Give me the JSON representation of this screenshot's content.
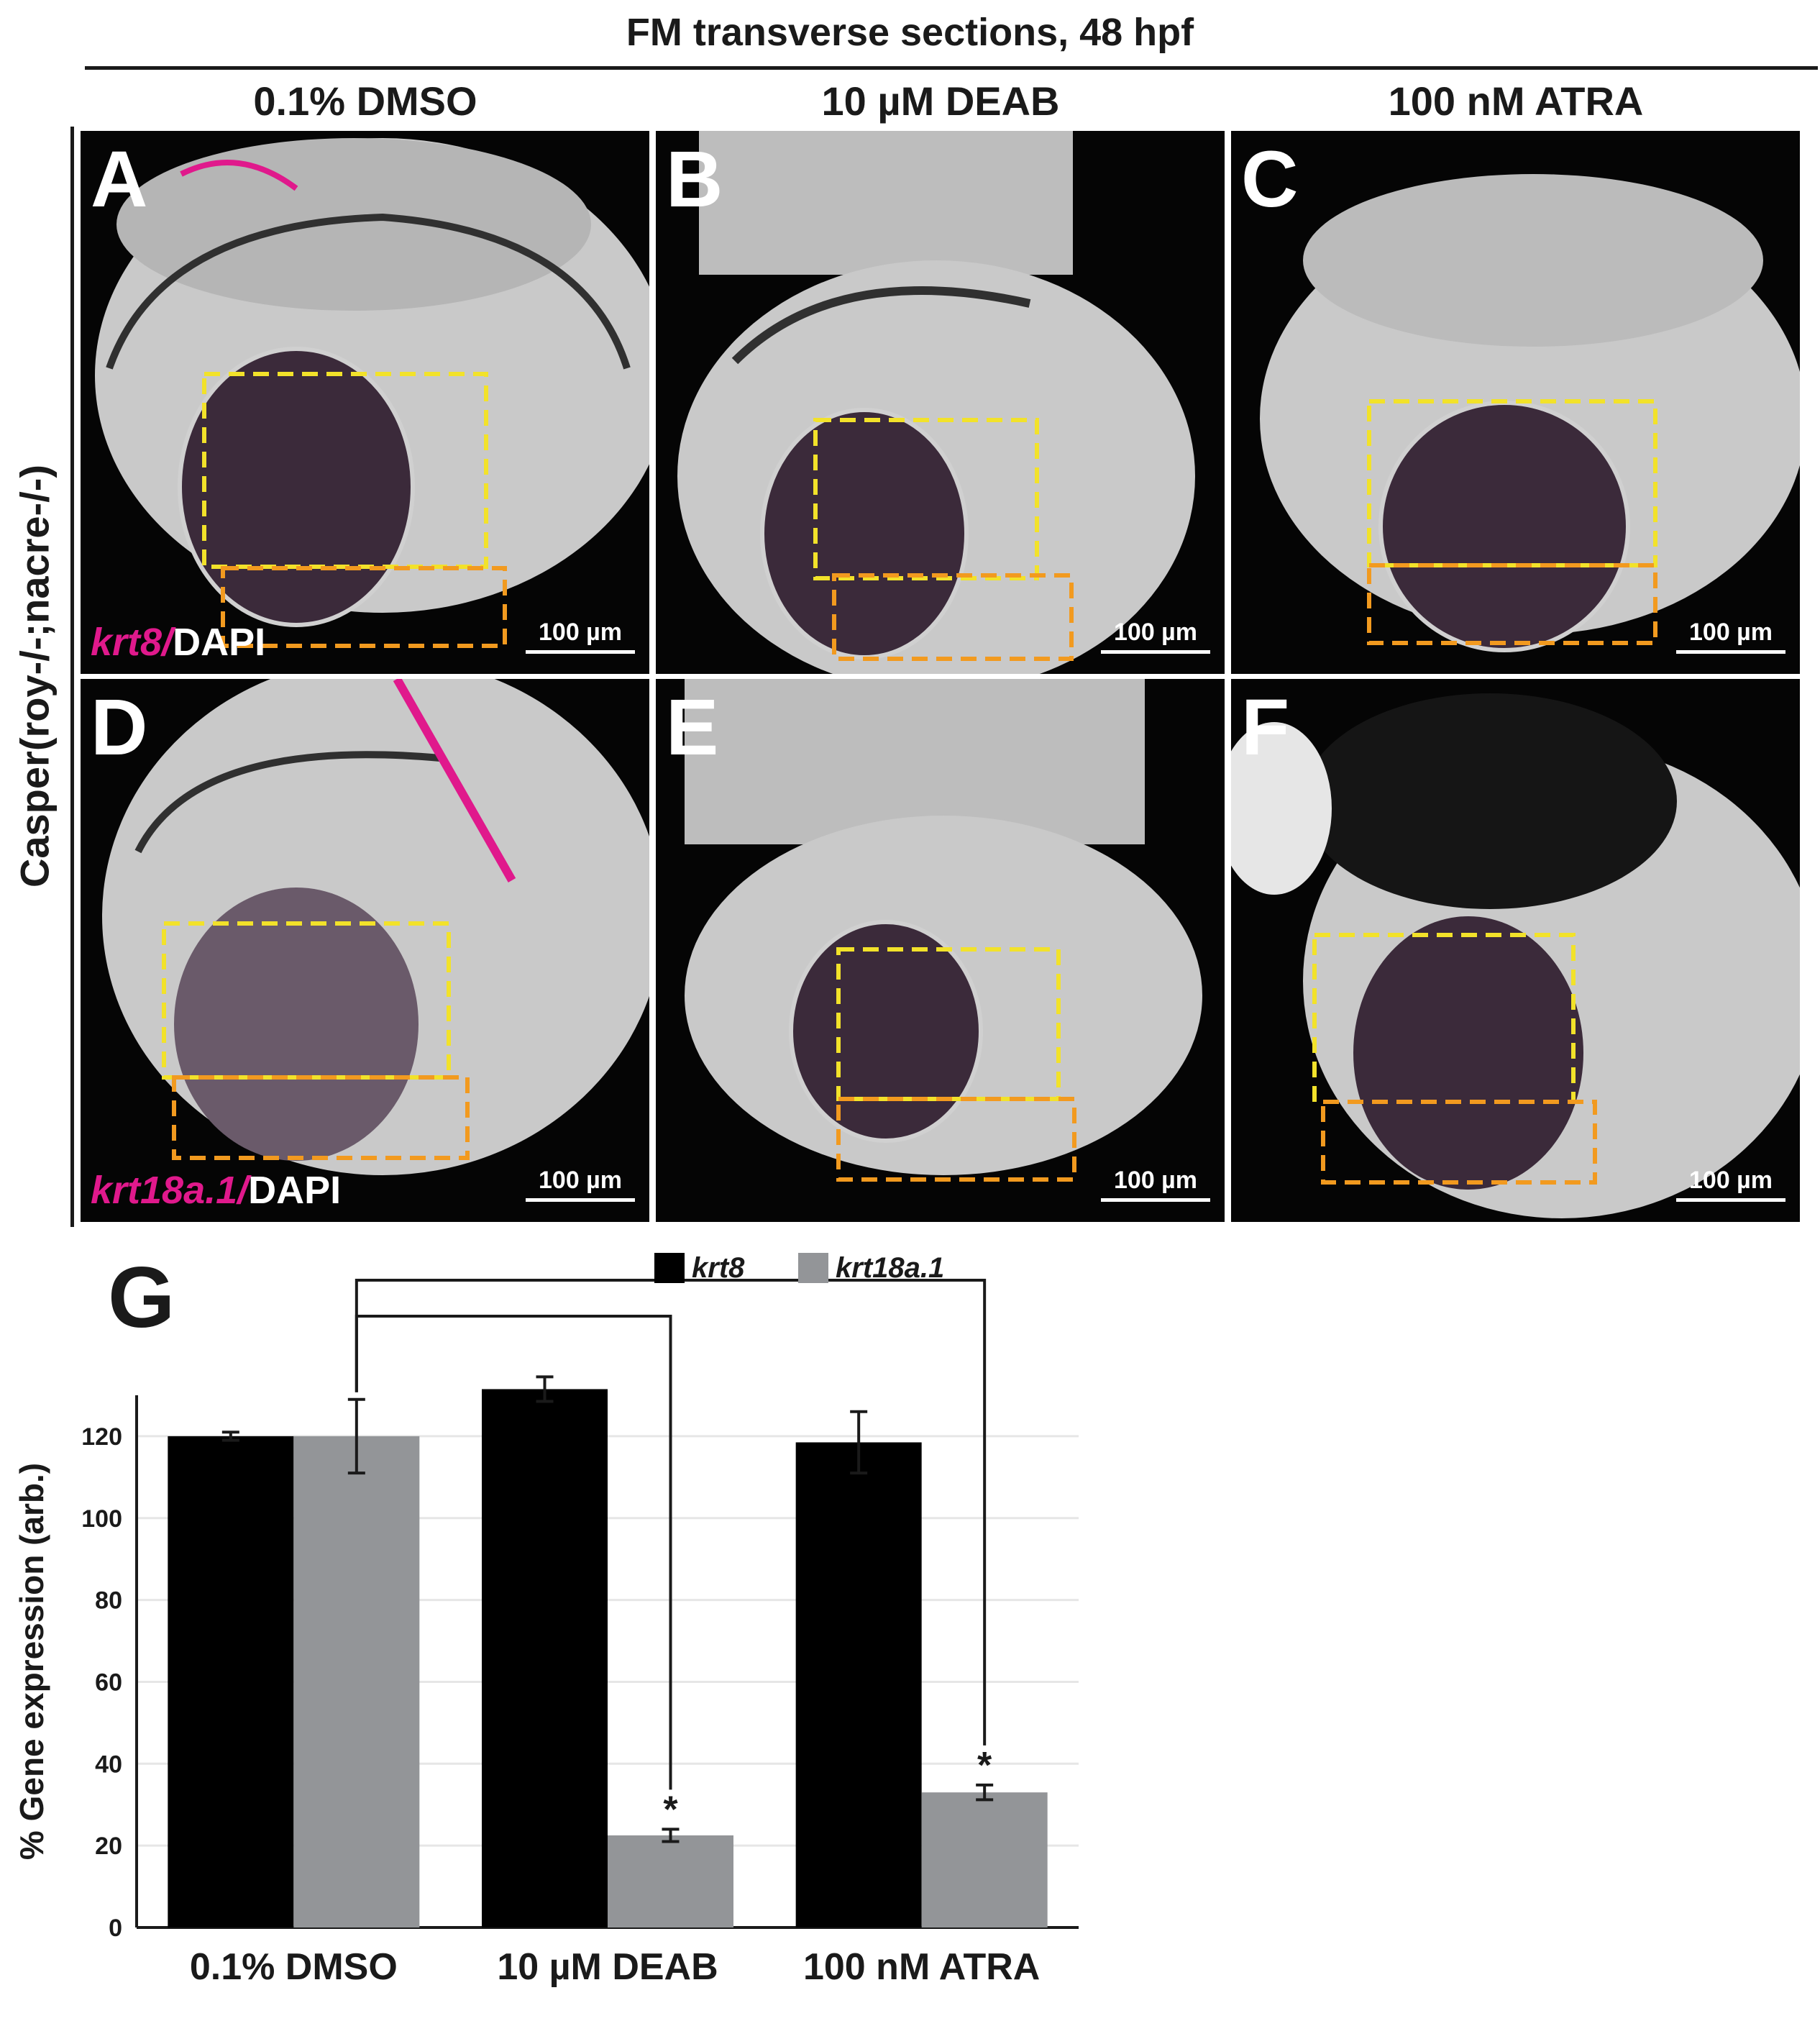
{
  "figure": {
    "title": "FM transverse sections, 48 hpf",
    "row_label": "Casper(roy-/-;nacre-/-)",
    "columns": [
      "0.1% DMSO",
      "10 µM DEAB",
      "100 nM ATRA"
    ],
    "panels": [
      {
        "letter": "A",
        "scale": "100 µm",
        "stain_gene": "krt8/",
        "stain_dapi": "DAPI"
      },
      {
        "letter": "B",
        "scale": "100 µm"
      },
      {
        "letter": "C",
        "scale": "100 µm"
      },
      {
        "letter": "D",
        "scale": "100 µm",
        "stain_gene": "krt18a.1/",
        "stain_dapi": "DAPI"
      },
      {
        "letter": "E",
        "scale": "100 µm"
      },
      {
        "letter": "F",
        "scale": "100 µm"
      }
    ],
    "colors": {
      "dapi": "#d9d9d9",
      "marker": "#e0198c",
      "box_yellow": "#f2e22a",
      "box_orange": "#f29a1f",
      "background": "#050505"
    }
  },
  "chart_data": {
    "type": "bar",
    "panel_letter": "G",
    "categories": [
      "0.1% DMSO",
      "10 µM DEAB",
      "100 nM ATRA"
    ],
    "series": [
      {
        "name": "krt8",
        "color": "#000000",
        "values": [
          120,
          131.5,
          118.5
        ],
        "errors": [
          1,
          3,
          7.5
        ]
      },
      {
        "name": "krt18a.1",
        "color": "#939598",
        "values": [
          120,
          22.5,
          33
        ],
        "errors": [
          9,
          1.5,
          1.8
        ]
      }
    ],
    "ylabel": "% Gene expression (arb.)",
    "ylim": [
      0,
      130
    ],
    "yticks": [
      0,
      20,
      40,
      60,
      80,
      100,
      120
    ],
    "grid": true,
    "legend_position": "top-center",
    "significance": [
      {
        "from": "0.1% DMSO / krt18a.1",
        "to": "10 µM DEAB / krt18a.1",
        "marker": "*"
      },
      {
        "from": "0.1% DMSO / krt18a.1",
        "to": "100 nM ATRA / krt18a.1",
        "marker": "*"
      }
    ]
  }
}
